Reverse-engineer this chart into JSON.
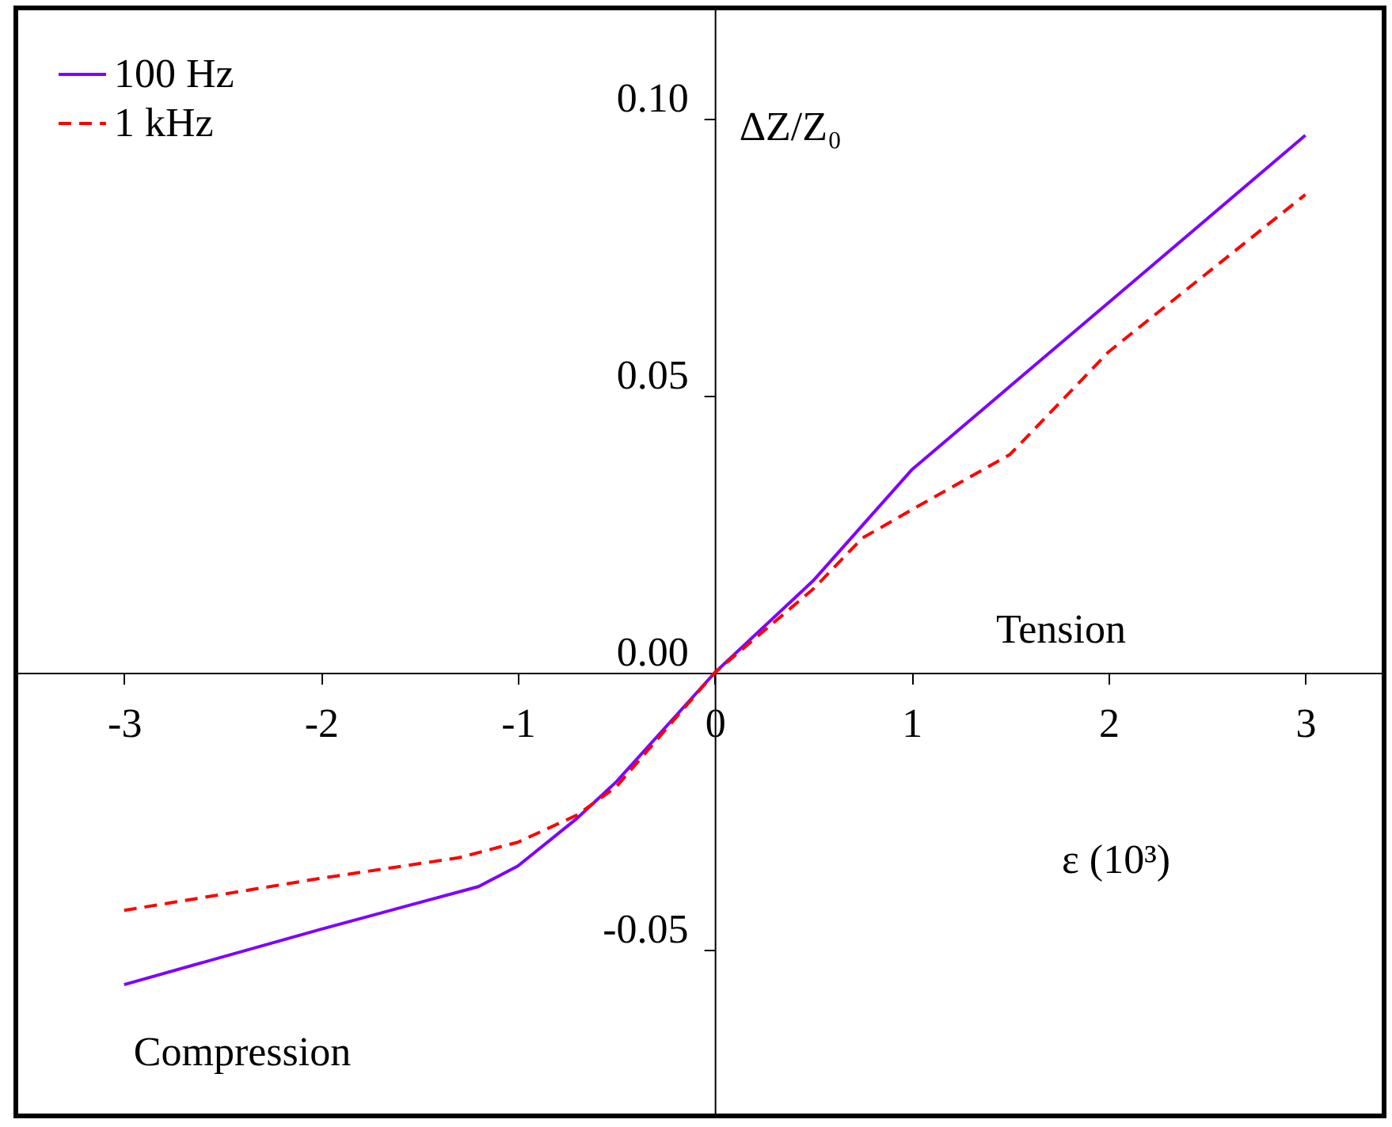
{
  "chart_data": {
    "type": "line",
    "xlabel": "ε (10³)",
    "ylabel": "ΔZ/Z₀",
    "series": [
      {
        "name": "100 Hz",
        "color": "#7f00ff",
        "line_style": "solid",
        "x": [
          -3,
          -2,
          -1.2,
          -1,
          -0.7,
          -0.5,
          0,
          0.5,
          1,
          1.5,
          2,
          2.5,
          3
        ],
        "values": [
          -0.0563,
          -0.0463,
          -0.0386,
          -0.0349,
          -0.0263,
          -0.0197,
          0,
          0.0166,
          0.0366,
          0.0517,
          0.0668,
          0.0819,
          0.097
        ]
      },
      {
        "name": "1 kHz",
        "color": "#ff0000",
        "line_style": "dashed",
        "x": [
          -3,
          -2,
          -1.3,
          -1,
          -0.7,
          -0.5,
          0,
          0.5,
          0.75,
          1,
          1.5,
          2,
          2.5,
          3
        ],
        "values": [
          -0.0429,
          -0.0371,
          -0.0334,
          -0.0306,
          -0.0257,
          -0.0206,
          0,
          0.0151,
          0.0243,
          0.0294,
          0.0394,
          0.0579,
          0.0721,
          0.0863
        ]
      }
    ],
    "xlim": [
      -3.55,
      3.4
    ],
    "ylim": [
      -0.08,
      0.12
    ],
    "xticks": [
      -3,
      -2,
      -1,
      0,
      1,
      2,
      3
    ],
    "yticks": [
      {
        "value": -0.05,
        "label": "-0.05"
      },
      {
        "value": 0,
        "label": "0.00"
      },
      {
        "value": 0.05,
        "label": "0.05"
      },
      {
        "value": 0.1,
        "label": "0.10"
      }
    ],
    "annotations": [
      "Tension",
      "Compression"
    ],
    "legend": "top left",
    "grid": false
  }
}
